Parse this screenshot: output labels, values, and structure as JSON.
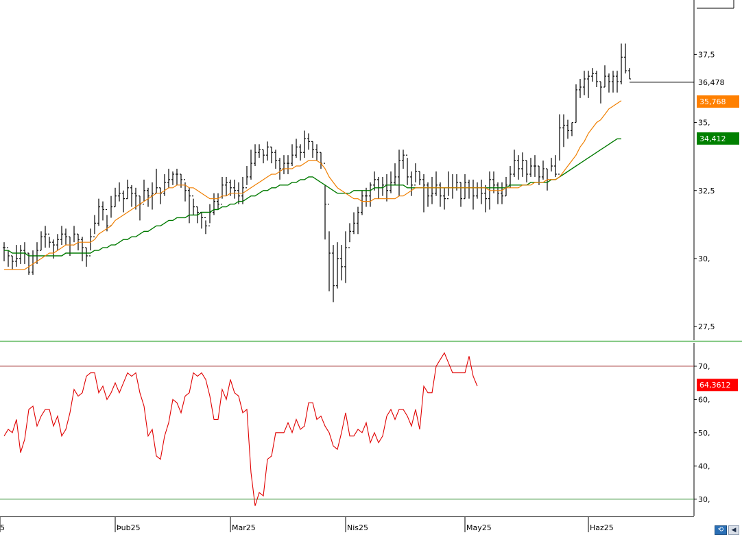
{
  "colors": {
    "price_bars": "#000000",
    "ma_fast": "#f07f00",
    "ma_slow": "#007a00",
    "rsi_line": "#e00000",
    "rsi_upper_line": "#a03030",
    "rsi_lower_line": "#2e8b2e",
    "panel_divider": "#5cb85c",
    "last_price_line": "#000000",
    "badge_fast": "#ff8000",
    "badge_slow": "#008000",
    "badge_rsi": "#ff0000"
  },
  "icons": {
    "corner_button": "refresh-icon",
    "corner_arrow": "arrow-left-icon"
  },
  "chart_data": [
    {
      "type": "ohlc",
      "ylim": [
        27.0,
        39.5
      ],
      "y_ticks": [
        "37,5",
        "35,",
        "32,5",
        "30,",
        "27,5"
      ],
      "y_tick_values": [
        37.5,
        35.0,
        32.5,
        30.0,
        27.5
      ],
      "last_price_label": "36,478",
      "last_price": 36.478,
      "ma_fast_label": "35,768",
      "ma_fast_last": 35.768,
      "ma_slow_label": "34,412",
      "ma_slow_last": 34.412,
      "closes": [
        30.4,
        30.1,
        29.9,
        30.0,
        30.3,
        30.2,
        29.5,
        30.1,
        30.3,
        30.8,
        30.9,
        30.6,
        30.5,
        30.7,
        30.9,
        30.8,
        30.5,
        30.9,
        30.7,
        30.4,
        30.1,
        30.8,
        31.3,
        31.9,
        31.8,
        31.2,
        31.9,
        32.3,
        32.4,
        32.2,
        32.6,
        32.4,
        32.3,
        32.0,
        32.5,
        32.3,
        32.4,
        32.6,
        32.4,
        32.8,
        32.9,
        33.1,
        33.1,
        32.9,
        32.5,
        32.3,
        31.9,
        31.7,
        31.5,
        31.2,
        31.7,
        32.1,
        32.0,
        32.7,
        32.8,
        32.6,
        32.5,
        32.3,
        32.6,
        33.0,
        33.5,
        33.9,
        34.0,
        33.8,
        34.1,
        33.9,
        33.6,
        33.3,
        33.5,
        33.5,
        33.8,
        34.1,
        33.9,
        34.4,
        34.3,
        34.0,
        33.9,
        33.5,
        32.0,
        30.2,
        29.0,
        30.0,
        29.7,
        30.4,
        31.0,
        31.3,
        31.7,
        32.3,
        32.3,
        32.7,
        32.9,
        32.6,
        32.7,
        32.5,
        32.8,
        33.0,
        33.6,
        33.8,
        33.0,
        32.7,
        33.2,
        32.9,
        32.7,
        32.3,
        32.4,
        32.7,
        32.3,
        32.2,
        32.6,
        32.6,
        32.8,
        32.2,
        32.8,
        32.6,
        32.3,
        32.6,
        32.4,
        32.2,
        32.9,
        32.7,
        32.4,
        32.3,
        32.7,
        33.1,
        33.6,
        33.3,
        33.6,
        33.1,
        33.4,
        33.4,
        33.0,
        33.3,
        32.9,
        33.4,
        33.1,
        34.8,
        34.9,
        34.7,
        35.0,
        36.2,
        36.3,
        36.6,
        36.7,
        36.8,
        36.5,
        36.3,
        36.7,
        36.5,
        36.7,
        36.5,
        37.4,
        36.9,
        36.6
      ],
      "highs": [
        30.6,
        30.3,
        30.1,
        30.5,
        30.5,
        30.6,
        30.2,
        30.3,
        30.6,
        31.0,
        31.2,
        30.8,
        30.7,
        30.9,
        31.2,
        31.1,
        30.8,
        31.2,
        30.9,
        30.8,
        30.4,
        31.1,
        31.6,
        32.2,
        32.1,
        31.6,
        32.3,
        32.6,
        32.8,
        32.5,
        32.9,
        32.7,
        32.6,
        32.3,
        32.9,
        32.6,
        32.8,
        33.3,
        32.6,
        33.1,
        33.3,
        33.2,
        33.3,
        33.1,
        32.8,
        32.6,
        32.2,
        31.9,
        31.7,
        31.4,
        32.0,
        32.4,
        32.4,
        33.0,
        33.0,
        32.9,
        32.9,
        32.8,
        33.0,
        33.4,
        34.0,
        34.2,
        34.2,
        34.0,
        34.3,
        34.1,
        34.0,
        33.7,
        33.8,
        33.8,
        34.2,
        34.4,
        34.2,
        34.7,
        34.6,
        34.3,
        34.2,
        33.9,
        32.7,
        31.0,
        30.5,
        30.6,
        30.5,
        31.0,
        31.3,
        31.7,
        31.9,
        32.5,
        32.6,
        32.8,
        33.2,
        33.0,
        33.0,
        33.1,
        33.2,
        33.5,
        34.0,
        34.0,
        33.7,
        33.2,
        33.5,
        33.2,
        33.1,
        32.8,
        33.0,
        33.2,
        32.8,
        32.6,
        33.2,
        33.1,
        33.1,
        32.8,
        33.1,
        32.9,
        32.9,
        32.8,
        32.9,
        32.7,
        33.2,
        33.2,
        32.8,
        32.8,
        33.0,
        33.4,
        34.0,
        33.8,
        33.9,
        33.6,
        33.7,
        33.8,
        33.4,
        33.6,
        33.3,
        33.7,
        33.8,
        35.3,
        35.3,
        35.1,
        35.0,
        36.4,
        36.6,
        36.9,
        36.9,
        37.0,
        36.9,
        36.5,
        37.1,
        36.8,
        36.9,
        36.9,
        37.9,
        37.9,
        37.0
      ],
      "lows": [
        29.9,
        29.7,
        29.6,
        29.7,
        29.8,
        29.8,
        29.4,
        29.4,
        29.8,
        30.3,
        30.4,
        30.4,
        30.0,
        30.3,
        30.5,
        30.5,
        30.1,
        30.6,
        30.3,
        29.9,
        29.7,
        30.3,
        30.9,
        31.2,
        31.4,
        31.0,
        31.5,
        31.9,
        32.1,
        31.7,
        32.2,
        31.9,
        31.8,
        31.4,
        32.1,
        31.9,
        31.8,
        32.4,
        32.0,
        32.3,
        32.6,
        32.7,
        32.7,
        32.6,
        32.1,
        31.3,
        31.6,
        31.3,
        31.1,
        30.9,
        31.3,
        31.6,
        31.8,
        32.2,
        32.3,
        32.3,
        32.2,
        32.0,
        32.0,
        32.7,
        32.9,
        33.4,
        33.7,
        33.5,
        33.6,
        33.5,
        33.3,
        32.9,
        33.1,
        33.1,
        33.4,
        33.7,
        33.6,
        33.7,
        34.0,
        33.7,
        33.6,
        33.3,
        30.7,
        28.8,
        28.4,
        28.9,
        29.2,
        29.1,
        30.6,
        30.9,
        30.9,
        31.6,
        31.9,
        31.9,
        32.5,
        32.2,
        32.3,
        32.1,
        32.4,
        32.7,
        32.3,
        33.3,
        32.7,
        32.3,
        32.8,
        32.7,
        31.7,
        31.9,
        32.0,
        32.3,
        31.9,
        31.8,
        32.3,
        32.2,
        32.5,
        31.9,
        32.2,
        32.2,
        31.8,
        32.2,
        32.0,
        31.7,
        31.8,
        32.4,
        32.0,
        32.0,
        32.3,
        32.6,
        33.0,
        32.9,
        33.0,
        32.8,
        33.0,
        33.0,
        32.7,
        32.9,
        32.5,
        33.2,
        33.0,
        33.6,
        34.1,
        34.4,
        34.5,
        35.0,
        35.9,
        36.0,
        35.9,
        36.5,
        36.3,
        35.7,
        36.3,
        36.1,
        36.1,
        36.1,
        36.4,
        36.8,
        36.6
      ],
      "ma_fast": [
        29.6,
        29.6,
        29.6,
        29.6,
        29.6,
        29.6,
        29.7,
        29.8,
        29.9,
        30.0,
        30.1,
        30.2,
        30.2,
        30.3,
        30.4,
        30.5,
        30.5,
        30.5,
        30.6,
        30.6,
        30.6,
        30.6,
        30.7,
        30.9,
        31.0,
        31.1,
        31.2,
        31.4,
        31.5,
        31.6,
        31.7,
        31.8,
        31.9,
        32.0,
        32.1,
        32.2,
        32.3,
        32.4,
        32.4,
        32.5,
        32.6,
        32.6,
        32.7,
        32.7,
        32.7,
        32.6,
        32.6,
        32.5,
        32.4,
        32.3,
        32.2,
        32.2,
        32.2,
        32.3,
        32.3,
        32.4,
        32.4,
        32.4,
        32.4,
        32.5,
        32.6,
        32.7,
        32.8,
        32.9,
        33.0,
        33.1,
        33.1,
        33.2,
        33.3,
        33.3,
        33.3,
        33.4,
        33.4,
        33.5,
        33.6,
        33.6,
        33.6,
        33.5,
        33.3,
        33.0,
        32.8,
        32.6,
        32.5,
        32.4,
        32.3,
        32.2,
        32.2,
        32.1,
        32.1,
        32.1,
        32.2,
        32.2,
        32.2,
        32.2,
        32.2,
        32.2,
        32.3,
        32.3,
        32.4,
        32.5,
        32.6,
        32.6,
        32.6,
        32.6,
        32.6,
        32.6,
        32.6,
        32.6,
        32.6,
        32.6,
        32.6,
        32.6,
        32.6,
        32.6,
        32.6,
        32.6,
        32.6,
        32.6,
        32.5,
        32.5,
        32.5,
        32.5,
        32.6,
        32.6,
        32.6,
        32.6,
        32.7,
        32.7,
        32.7,
        32.8,
        32.8,
        32.8,
        32.9,
        32.9,
        32.9,
        33.0,
        33.2,
        33.4,
        33.6,
        33.8,
        34.1,
        34.3,
        34.6,
        34.8,
        35.0,
        35.1,
        35.3,
        35.5,
        35.6,
        35.7,
        35.8
      ],
      "ma_slow": [
        30.3,
        30.3,
        30.2,
        30.2,
        30.2,
        30.2,
        30.1,
        30.1,
        30.1,
        30.1,
        30.1,
        30.1,
        30.1,
        30.1,
        30.1,
        30.2,
        30.2,
        30.2,
        30.2,
        30.2,
        30.2,
        30.2,
        30.3,
        30.3,
        30.4,
        30.4,
        30.5,
        30.5,
        30.6,
        30.7,
        30.7,
        30.8,
        30.8,
        30.9,
        31.0,
        31.0,
        31.1,
        31.2,
        31.2,
        31.3,
        31.4,
        31.4,
        31.5,
        31.5,
        31.5,
        31.6,
        31.6,
        31.6,
        31.7,
        31.7,
        31.7,
        31.8,
        31.8,
        31.9,
        31.9,
        32.0,
        32.0,
        32.1,
        32.1,
        32.2,
        32.3,
        32.3,
        32.4,
        32.5,
        32.5,
        32.6,
        32.6,
        32.7,
        32.7,
        32.7,
        32.8,
        32.8,
        32.9,
        32.9,
        33.0,
        33.0,
        32.9,
        32.8,
        32.7,
        32.6,
        32.5,
        32.4,
        32.4,
        32.4,
        32.4,
        32.5,
        32.5,
        32.5,
        32.5,
        32.5,
        32.6,
        32.6,
        32.6,
        32.7,
        32.7,
        32.7,
        32.7,
        32.7,
        32.6,
        32.6,
        32.6,
        32.6,
        32.6,
        32.6,
        32.6,
        32.6,
        32.6,
        32.6,
        32.6,
        32.6,
        32.6,
        32.6,
        32.6,
        32.6,
        32.6,
        32.6,
        32.6,
        32.6,
        32.6,
        32.6,
        32.6,
        32.6,
        32.6,
        32.7,
        32.7,
        32.7,
        32.7,
        32.7,
        32.8,
        32.8,
        32.8,
        32.8,
        32.8,
        32.9,
        32.9,
        33.0,
        33.1,
        33.2,
        33.3,
        33.4,
        33.5,
        33.6,
        33.7,
        33.8,
        33.9,
        34.0,
        34.1,
        34.2,
        34.3,
        34.4,
        34.4
      ]
    },
    {
      "type": "line",
      "ylim": [
        25,
        77
      ],
      "y_ticks": [
        "70,",
        "60,",
        "50,",
        "40,",
        "30,"
      ],
      "y_tick_values": [
        70,
        60,
        50,
        40,
        30
      ],
      "upper_level": 70,
      "lower_level": 30,
      "last_value_label": "64,3612",
      "last_value": 64.3612,
      "x_ticks": [
        "5",
        "Þub25",
        "Mar25",
        "Nis25",
        "May25",
        "Haz25"
      ],
      "x_tick_index": [
        0,
        27,
        55,
        83,
        112,
        142
      ],
      "values": [
        49,
        51,
        50,
        54,
        44,
        48,
        57,
        58,
        52,
        55,
        57,
        57,
        52,
        55,
        49,
        51,
        56,
        63,
        61,
        62,
        67,
        68,
        68,
        62,
        64,
        60,
        62,
        65,
        62,
        65,
        68,
        67,
        68,
        62,
        58,
        49,
        51,
        43,
        42,
        49,
        53,
        60,
        59,
        56,
        61,
        62,
        68,
        67,
        68,
        66,
        61,
        54,
        54,
        63,
        60,
        66,
        62,
        61,
        56,
        57,
        38,
        28,
        32,
        31,
        42,
        43,
        50,
        50,
        50,
        53,
        50,
        54,
        51,
        52,
        59,
        59,
        54,
        55,
        52,
        50,
        46,
        45,
        50,
        56,
        49,
        49,
        51,
        50,
        53,
        47,
        50,
        47,
        49,
        55,
        57,
        54,
        57,
        57,
        55,
        52,
        57,
        51,
        64,
        62,
        62,
        70,
        72,
        74,
        71,
        68,
        68,
        68,
        68,
        73,
        67,
        64
      ]
    }
  ]
}
